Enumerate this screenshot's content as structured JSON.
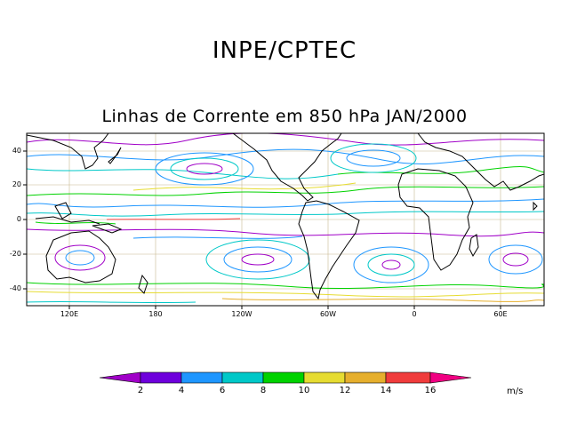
{
  "header": {
    "organization": "INPE/CPTEC",
    "title": "Linhas de Corrente em 850 hPa JAN/2000"
  },
  "map": {
    "projection": "cylindrical equidistant",
    "longitude_range": "90E to 100E (wrap)",
    "latitude_range": "-50 to 50",
    "y_axis_labels": [
      "40",
      "20",
      "0",
      "-20",
      "-40"
    ],
    "x_axis_labels": [
      "120E",
      "180",
      "120W",
      "60W",
      "0",
      "60E"
    ],
    "grid_color": "#c8b890",
    "coastline_color": "#000000"
  },
  "colorbar": {
    "tick_labels": [
      "2",
      "4",
      "6",
      "8",
      "10",
      "12",
      "14",
      "16"
    ],
    "units": "m/s",
    "colors": [
      "#a000c8",
      "#6e00dc",
      "#1e96ff",
      "#00c8c8",
      "#00d200",
      "#e6dc32",
      "#e6af2d",
      "#f03c3c",
      "#f00082"
    ]
  }
}
